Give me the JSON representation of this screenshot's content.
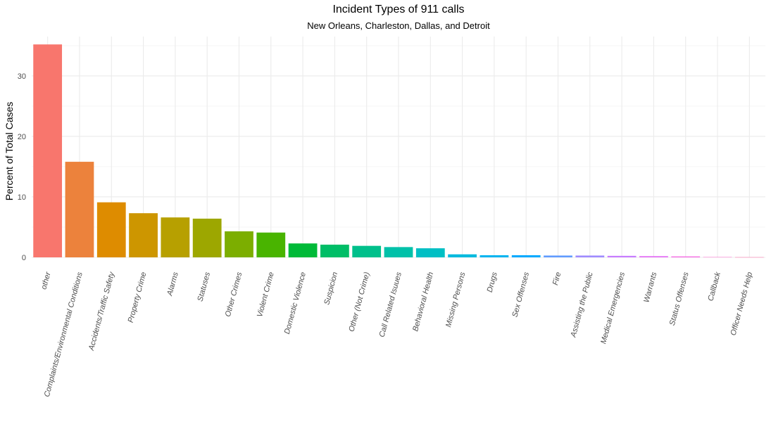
{
  "chart_data": {
    "type": "bar",
    "title": "Incident Types of 911 calls",
    "subtitle": "New Orleans, Charleston, Dallas, and Detroit",
    "xlabel": "",
    "ylabel": "Percent of Total Cases",
    "ylim": [
      0,
      36.5
    ],
    "yticks": [
      0,
      10,
      20,
      30
    ],
    "grid": true,
    "legend": "none",
    "categories": [
      "other",
      "Complaints/Environmental Conditions",
      "Accidents/Traffic Safety",
      "Property Crime",
      "Alarms",
      "Statuses",
      "Other Crimes",
      "Violent Crime",
      "Domestic Violence",
      "Suspicion",
      "Other (Not Crime)",
      "Call Related Isuues",
      "Behavioral Health",
      "Missing Persons",
      "Drugs",
      "Sex Offenses",
      "Fire",
      "Assisting the Public",
      "Medical Emergencies",
      "Warrants",
      "Status Offenses",
      "Callback",
      "Officer Needs Help"
    ],
    "values": [
      35.2,
      15.8,
      9.1,
      7.3,
      6.6,
      6.4,
      4.3,
      4.1,
      2.3,
      2.1,
      1.9,
      1.7,
      1.5,
      0.5,
      0.35,
      0.35,
      0.3,
      0.3,
      0.25,
      0.2,
      0.15,
      0.05,
      0.03
    ],
    "colors": [
      "#F8766D",
      "#EC823C",
      "#DE8C00",
      "#CD9600",
      "#B7A000",
      "#9DA700",
      "#7CAE00",
      "#49B400",
      "#00BA38",
      "#00BE67",
      "#00C08B",
      "#00C1A9",
      "#00BFC4",
      "#00BADE",
      "#00B4F0",
      "#00A9FF",
      "#619CFF",
      "#9F8CFF",
      "#C77CFF",
      "#E36EF6",
      "#F564E3",
      "#FE61CF",
      "#FF67A4"
    ]
  }
}
